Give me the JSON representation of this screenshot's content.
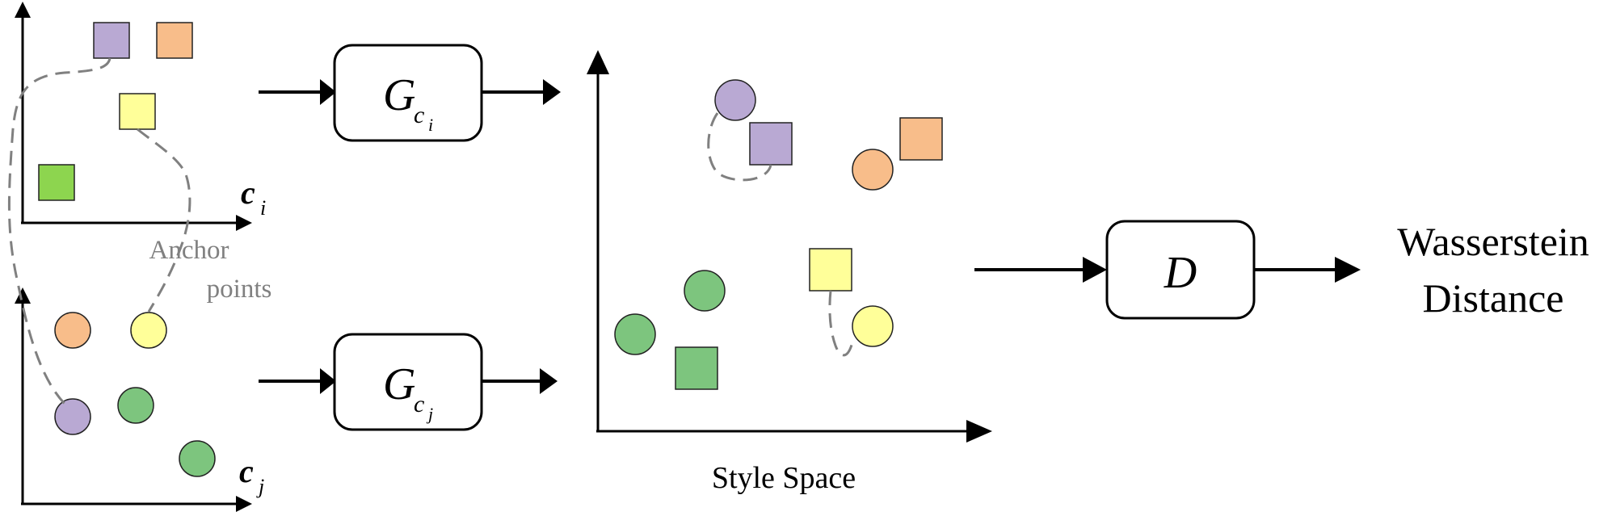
{
  "colors": {
    "purple": "#b9a9d3",
    "orange": "#f8bd8a",
    "yellow": "#ffff99",
    "green_square": "#8dd54f",
    "green": "#7dc57e",
    "dash": "#808080"
  },
  "left_top_plot": {
    "axis_label": "c",
    "axis_subscript": "i"
  },
  "left_bottom_plot": {
    "axis_label": "c",
    "axis_subscript": "j"
  },
  "anchor_label": {
    "line1": "Anchor",
    "line2": "points"
  },
  "generator_top": {
    "letter": "G",
    "sub": "c",
    "subsub": "i"
  },
  "generator_bottom": {
    "letter": "G",
    "sub": "c",
    "subsub": "j"
  },
  "style_space": {
    "label": "Style Space"
  },
  "discriminator": {
    "letter": "D"
  },
  "output": {
    "line1": "Wasserstein",
    "line2": "Distance"
  }
}
